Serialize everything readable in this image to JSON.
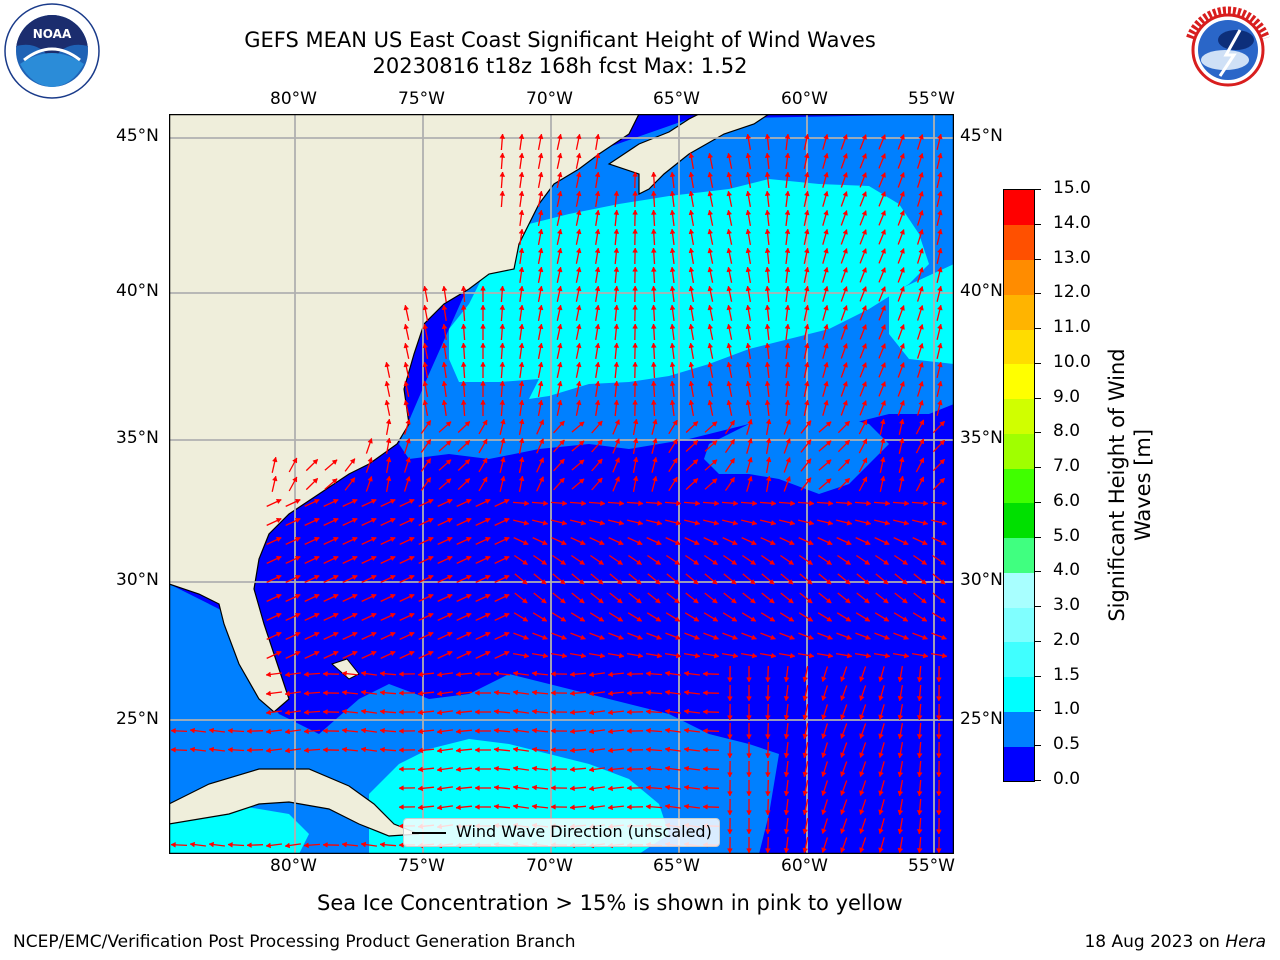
{
  "title_line1": "GEFS MEAN US East Coast Significant Height of Wind Waves",
  "title_line2": "20230816 t18z 168h fcst   Max: 1.52",
  "logos": {
    "left": "noaa-logo",
    "right": "nws-logo"
  },
  "lon_ticks": [
    "80°W",
    "75°W",
    "70°W",
    "65°W",
    "60°W",
    "55°W"
  ],
  "lat_ticks": [
    "45°N",
    "40°N",
    "35°N",
    "30°N",
    "25°N"
  ],
  "colorbar": {
    "label": "Significant Height of Wind\nWaves [m]",
    "ticks": [
      "0.0",
      "0.5",
      "1.0",
      "1.5",
      "2.0",
      "3.0",
      "4.0",
      "5.0",
      "6.0",
      "7.0",
      "8.0",
      "9.0",
      "10.0",
      "11.0",
      "12.0",
      "13.0",
      "14.0",
      "15.0"
    ],
    "colors": [
      "#0000ff",
      "#0080ff",
      "#00ffff",
      "#40ffff",
      "#80ffff",
      "#a8ffff",
      "#40ff80",
      "#00e000",
      "#40ff00",
      "#a0ff00",
      "#d0ff00",
      "#ffff00",
      "#ffdc00",
      "#ffb400",
      "#ff8c00",
      "#ff5000",
      "#ff0000"
    ]
  },
  "legend": {
    "label": "Wind Wave Direction (unscaled)"
  },
  "colors": {
    "land": "#efeedb",
    "low": "#0000ff",
    "mid": "#0080ff",
    "cyan": "#00ffff",
    "arrow": "#ff0000",
    "grid": "#b0b0b0"
  },
  "footnote": "Sea Ice Concentration > 15% is shown in pink to yellow",
  "bottom_left": "NCEP/EMC/Verification Post Processing Product Generation Branch",
  "bottom_right_date": "18 Aug 2023 on",
  "bottom_right_host": "Hera"
}
